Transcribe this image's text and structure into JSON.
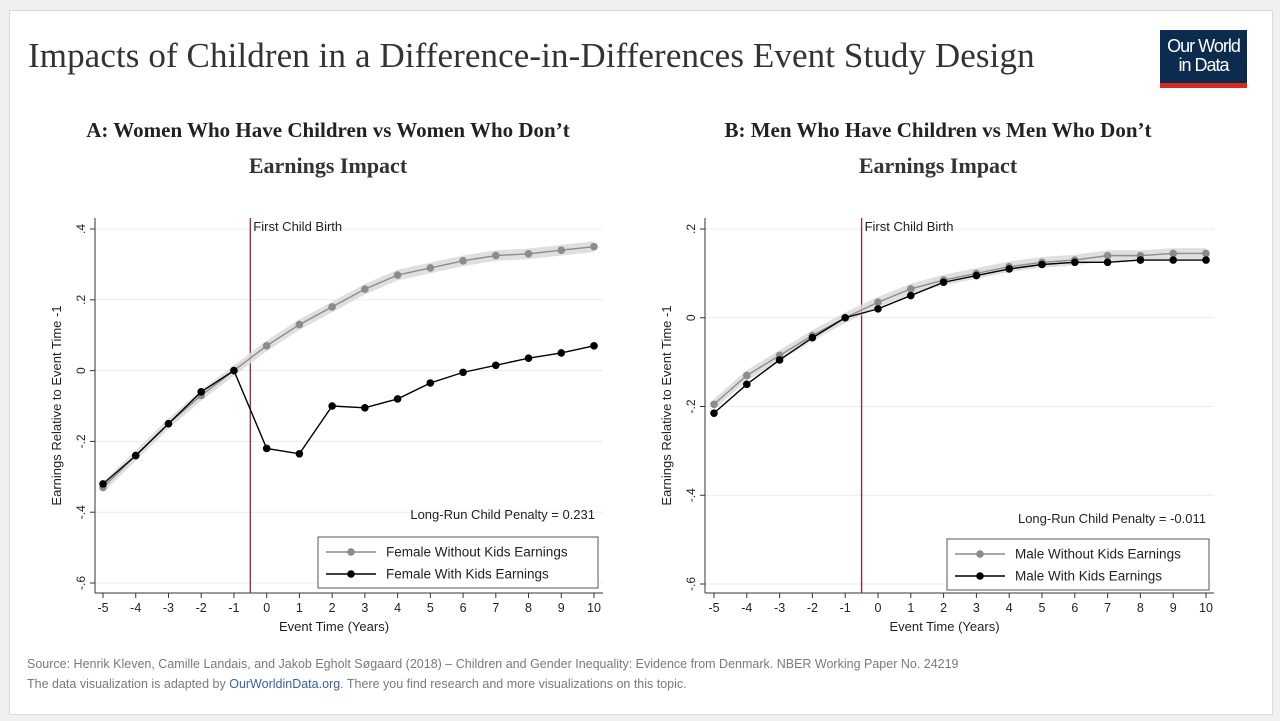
{
  "page": {
    "title": "Impacts of Children in a Difference-in-Differences Event Study Design",
    "logo_line1": "Our World",
    "logo_line2": "in Data",
    "source": "Source: Henrik Kleven, Camille Landais, and Jakob Egholt Søgaard (2018) – Children and Gender Inequality: Evidence from Denmark. NBER Working Paper No. 24219",
    "note_prefix": "The data visualization is adapted by ",
    "note_link": "OurWorldinData.org",
    "note_suffix": ". There you find research and more visualizations on this topic.",
    "colors": {
      "accent_red": "#d42b21",
      "logo_bg": "#0b2c4f",
      "link": "#3a5fa8"
    }
  },
  "chart_data": [
    {
      "type": "line",
      "panel_title": "A: Women Who Have Children vs Women Who Don’t",
      "title": "Earnings Impact",
      "xlabel": "Event Time (Years)",
      "ylabel": "Earnings Relative to Event Time -1",
      "x": [
        -5,
        -4,
        -3,
        -2,
        -1,
        0,
        1,
        2,
        3,
        4,
        5,
        6,
        7,
        8,
        9,
        10
      ],
      "xticks": [
        "-5",
        "-4",
        "-3",
        "-2",
        "-1",
        "0",
        "1",
        "2",
        "3",
        "4",
        "5",
        "6",
        "7",
        "8",
        "9",
        "10"
      ],
      "ylim": [
        -0.6,
        0.4
      ],
      "yticks": [
        0.4,
        0.2,
        0,
        -0.2,
        -0.4,
        -0.6
      ],
      "ytick_labels": [
        ".4",
        ".2",
        "0",
        "-.2",
        "-.4",
        "-.6"
      ],
      "event_line_x": -0.5,
      "event_label": "First Child Birth",
      "annotation": "Long-Run Child Penalty = 0.231",
      "series": [
        {
          "name": "Female Without Kids Earnings",
          "color": "#8c8c8c",
          "band": 0.015,
          "values": [
            -0.33,
            -0.24,
            -0.15,
            -0.07,
            0.0,
            0.07,
            0.13,
            0.18,
            0.23,
            0.27,
            0.29,
            0.31,
            0.325,
            0.33,
            0.34,
            0.35
          ]
        },
        {
          "name": "Female With Kids Earnings",
          "color": "#000000",
          "values": [
            -0.32,
            -0.24,
            -0.15,
            -0.06,
            0.0,
            -0.22,
            -0.235,
            -0.1,
            -0.105,
            -0.08,
            -0.035,
            -0.005,
            0.015,
            0.035,
            0.05,
            0.07
          ]
        }
      ],
      "legend": [
        "Female Without Kids Earnings",
        "Female With Kids Earnings"
      ]
    },
    {
      "type": "line",
      "panel_title": "B: Men Who Have Children vs Men Who Don’t",
      "title": "Earnings Impact",
      "xlabel": "Event Time (Years)",
      "ylabel": "Earnings Relative to Event Time -1",
      "x": [
        -5,
        -4,
        -3,
        -2,
        -1,
        0,
        1,
        2,
        3,
        4,
        5,
        6,
        7,
        8,
        9,
        10
      ],
      "xticks": [
        "-5",
        "-4",
        "-3",
        "-2",
        "-1",
        "0",
        "1",
        "2",
        "3",
        "4",
        "5",
        "6",
        "7",
        "8",
        "9",
        "10"
      ],
      "ylim": [
        -0.6,
        0.2
      ],
      "yticks": [
        0.2,
        0,
        -0.2,
        -0.4,
        -0.6
      ],
      "ytick_labels": [
        ".2",
        "0",
        "-.2",
        "-.4",
        "-.6"
      ],
      "event_line_x": -0.5,
      "event_label": "First Child Birth",
      "annotation": "Long-Run Child Penalty = -0.011",
      "series": [
        {
          "name": "Male Without Kids Earnings",
          "color": "#8c8c8c",
          "band": 0.012,
          "values": [
            -0.195,
            -0.13,
            -0.085,
            -0.04,
            0.0,
            0.035,
            0.065,
            0.085,
            0.1,
            0.115,
            0.125,
            0.13,
            0.14,
            0.14,
            0.145,
            0.145
          ]
        },
        {
          "name": "Male With Kids Earnings",
          "color": "#000000",
          "values": [
            -0.215,
            -0.15,
            -0.095,
            -0.045,
            0.0,
            0.02,
            0.05,
            0.08,
            0.095,
            0.11,
            0.12,
            0.125,
            0.125,
            0.13,
            0.13,
            0.13
          ]
        }
      ],
      "legend": [
        "Male Without Kids Earnings",
        "Male With Kids Earnings"
      ]
    }
  ]
}
